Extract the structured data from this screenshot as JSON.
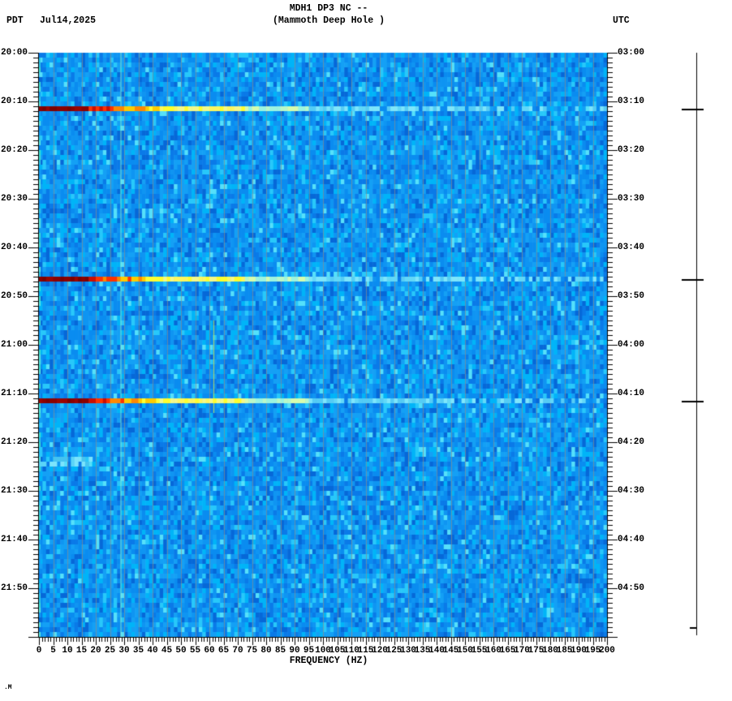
{
  "header": {
    "tz_left": "PDT",
    "date": "Jul14,2025",
    "title_line1": "MDH1 DP3 NC --",
    "title_line2": "(Mammoth Deep Hole )",
    "tz_right": "UTC"
  },
  "corner_mark": ".M",
  "x_axis": {
    "label": "FREQUENCY (HZ)",
    "tick_labels": [
      "0",
      "5",
      "10",
      "15",
      "20",
      "25",
      "30",
      "35",
      "40",
      "45",
      "50",
      "55",
      "60",
      "65",
      "70",
      "75",
      "80",
      "85",
      "90",
      "95",
      "100",
      "105",
      "110",
      "115",
      "120",
      "125",
      "130",
      "135",
      "140",
      "145",
      "150",
      "155",
      "160",
      "165",
      "170",
      "175",
      "180",
      "185",
      "190",
      "195",
      "200"
    ]
  },
  "y_axis_left": {
    "timezone": "PDT",
    "tick_labels": [
      "20:00",
      "20:10",
      "20:20",
      "20:30",
      "20:40",
      "20:50",
      "21:00",
      "21:10",
      "21:20",
      "21:30",
      "21:40",
      "21:50"
    ]
  },
  "y_axis_right": {
    "timezone": "UTC",
    "tick_labels": [
      "03:00",
      "03:10",
      "03:20",
      "03:30",
      "03:40",
      "03:50",
      "04:00",
      "04:10",
      "04:20",
      "04:30",
      "04:40",
      "04:50"
    ]
  },
  "chart_data": {
    "type": "heatmap",
    "subtype": "seismic-spectrogram",
    "title": "MDH1 DP3 NC -- (Mammoth Deep Hole )",
    "date_pdt": "Jul14,2025",
    "xlabel": "FREQUENCY (HZ)",
    "x_range_hz": [
      0,
      200
    ],
    "x_major_tick_hz": 5,
    "x_minor_tick_hz": 1,
    "time_start_pdt": "20:00",
    "time_end_pdt": "22:00",
    "time_start_utc": "03:00",
    "time_end_utc": "05:00",
    "y_major_tick_minutes": 10,
    "y_minor_tick_minutes": 1,
    "minutes_total": 120,
    "grid": "faint gray vertical seams every 5 Hz",
    "legend": "none",
    "background_character": "uniform broadband blue noise, ~1-minute x ~1.25-Hz cells",
    "events": [
      {
        "time_pdt": "20:11",
        "time_utc": "03:11",
        "minute_offset": 11,
        "strength": "strong",
        "description": "Broadband high-amplitude arrival: saturated dark red below ~17 Hz, red-orange-yellow striping to ~28 Hz, yellow to ~58 Hz, pale green-cyan tail spanning full 0-200 Hz band"
      },
      {
        "time_pdt": "20:46",
        "time_utc": "03:46",
        "minute_offset": 46,
        "strength": "strong",
        "description": "Broadband high-amplitude arrival, same color progression as 20:11 event"
      },
      {
        "time_pdt": "21:11",
        "time_utc": "04:11",
        "minute_offset": 71,
        "strength": "strong",
        "description": "Broadband high-amplitude arrival, same color progression as 20:11 event"
      },
      {
        "time_pdt": "21:23",
        "time_utc": "04:23",
        "minute_offset": 83,
        "strength": "weak",
        "description": "Faint cyan brightening below ~10 Hz"
      }
    ],
    "persistent_features": [
      {
        "freq_hz": 28.5,
        "minute_start": 0,
        "minute_end": 120,
        "description": "faint continuous pale green-cyan tone line"
      },
      {
        "freq_hz": 61.5,
        "minute_start": 55,
        "minute_end": 74,
        "description": "short yellow-green tone line"
      }
    ],
    "right_trace": {
      "description": "event-mark line right of plot",
      "mark_minutes": [
        11,
        46,
        71
      ],
      "small_end_tick_minute": 118
    },
    "colors": {
      "axis": "#000000",
      "seam": "rgba(138,142,138,0.68)",
      "tone_28hz": "rgba(150,245,195,0.40)",
      "tone_62hz": "rgba(200,225,80,0.85)",
      "noise_palette": [
        [
          "#0a7ae8",
          14
        ],
        [
          "#0a8cf0",
          22
        ],
        [
          "#14a0f5",
          18
        ],
        [
          "#00b4f8",
          12
        ],
        [
          "#28c8fa",
          7
        ],
        [
          "#0668d8",
          10
        ],
        [
          "#0f95f2",
          14
        ],
        [
          "#55e0fa",
          3
        ]
      ],
      "edge_palette": [
        [
          "#3fe0cf",
          4
        ],
        [
          "#59e8e0",
          3
        ],
        [
          "#2ec8e8",
          3
        ],
        [
          "#14a0f5",
          4
        ]
      ],
      "event_core": [
        "#8b0000",
        "#9a0500",
        "#7c0000"
      ],
      "event_stripes": [
        "#cc0f00",
        "#ff3300",
        "#ff8800",
        "#ffcc00",
        "#ffff33"
      ],
      "event_yellow": [
        "#ffff2e",
        "#fdf760",
        "#f4f98a"
      ],
      "event_pale": [
        "#d6fcae",
        "#baf8c8",
        "#9cf4e0"
      ],
      "event_tail": [
        "#7ee6fb",
        "#62d8f8",
        "#55ccf5"
      ],
      "weak_event": [
        "#5ad4f8",
        "#7ce4fc",
        "#46c4f0"
      ]
    }
  }
}
